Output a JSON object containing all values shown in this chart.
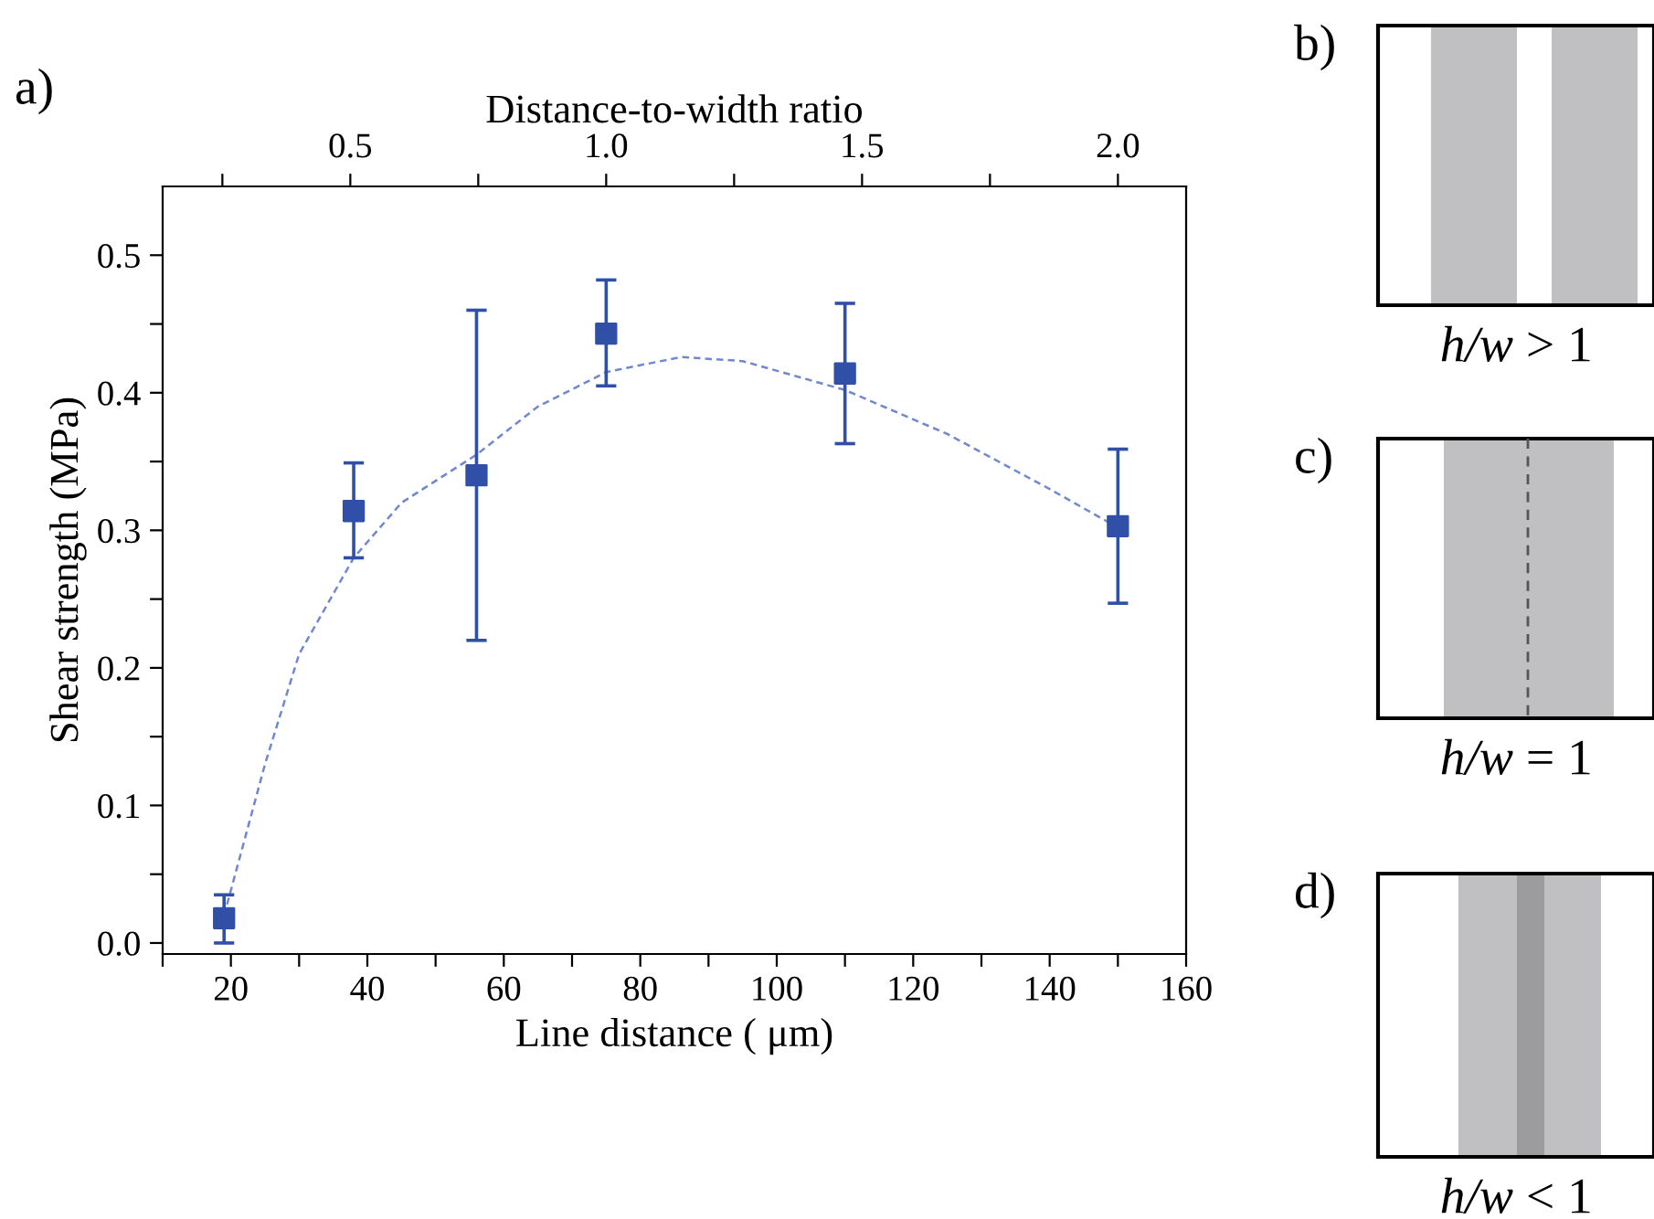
{
  "chart_data": {
    "type": "scatter",
    "xlabel": "Line distance ( μm)",
    "ylabel": "Shear strength (MPa)",
    "x2label": "Distance-to-width ratio",
    "xlim": [
      10,
      160
    ],
    "ylim": [
      -0.008,
      0.55
    ],
    "x2lim": [
      0.1333,
      2.1333
    ],
    "xticks": [
      {
        "value": 10,
        "label": null
      },
      20,
      {
        "value": 30,
        "label": null
      },
      40,
      {
        "value": 50,
        "label": null
      },
      60,
      {
        "value": 70,
        "label": null
      },
      80,
      {
        "value": 90,
        "label": null
      },
      100,
      {
        "value": 110,
        "label": null
      },
      120,
      {
        "value": 130,
        "label": null
      },
      140,
      {
        "value": 150,
        "label": null
      },
      160
    ],
    "yticks": [
      {
        "value": 0,
        "label": "0.0"
      },
      {
        "value": 0.05,
        "label": null
      },
      {
        "value": 0.1,
        "label": "0.1"
      },
      {
        "value": 0.15,
        "label": null
      },
      {
        "value": 0.2,
        "label": "0.2"
      },
      {
        "value": 0.25,
        "label": null
      },
      {
        "value": 0.3,
        "label": "0.3"
      },
      {
        "value": 0.35,
        "label": null
      },
      {
        "value": 0.4,
        "label": "0.4"
      },
      {
        "value": 0.45,
        "label": null
      },
      {
        "value": 0.5,
        "label": "0.5"
      }
    ],
    "x2ticks": [
      {
        "value": 0.25,
        "label": null
      },
      {
        "value": 0.5,
        "label": "0.5"
      },
      {
        "value": 0.75,
        "label": null
      },
      {
        "value": 1.0,
        "label": "1.0"
      },
      {
        "value": 1.25,
        "label": null
      },
      {
        "value": 1.5,
        "label": "1.5"
      },
      {
        "value": 1.75,
        "label": null
      },
      {
        "value": 2.0,
        "label": "2.0"
      }
    ],
    "grid": false,
    "series": [
      {
        "color": "#3050a8",
        "marker": "square",
        "x": [
          19,
          38,
          56,
          75,
          110,
          150
        ],
        "values": [
          0.018,
          0.314,
          0.34,
          0.443,
          0.414,
          0.303
        ],
        "errors": [
          [
            0.0,
            0.035
          ],
          [
            0.28,
            0.349
          ],
          [
            0.22,
            0.46
          ],
          [
            0.405,
            0.482
          ],
          [
            0.363,
            0.465
          ],
          [
            0.247,
            0.359
          ]
        ]
      },
      {
        "type": "line",
        "color": "#7088d0",
        "line_style": "dashed",
        "x": [
          19,
          25,
          30,
          38,
          45,
          56,
          65,
          75,
          86,
          95,
          110,
          125,
          140,
          150
        ],
        "values": [
          0.02,
          0.13,
          0.21,
          0.28,
          0.32,
          0.355,
          0.39,
          0.415,
          0.426,
          0.423,
          0.402,
          0.37,
          0.33,
          0.302
        ]
      }
    ],
    "annotations": [
      "a)",
      "b)",
      "h/w > 1",
      "c)",
      "h/w = 1",
      "d)",
      "h/w < 1"
    ]
  }
}
